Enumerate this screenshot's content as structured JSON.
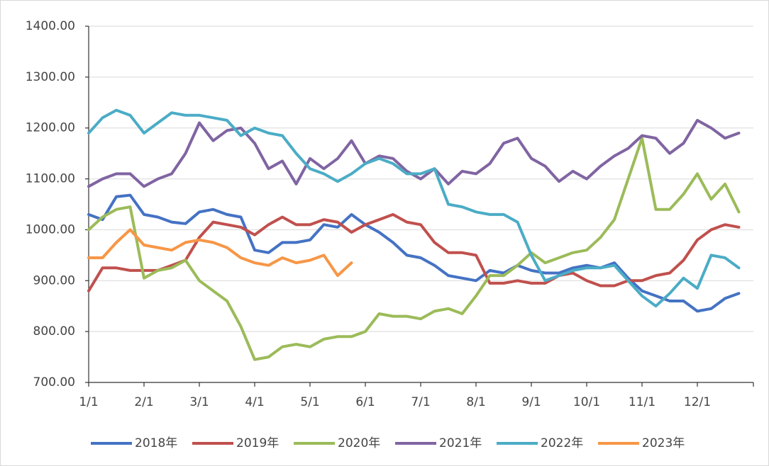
{
  "chart_data": {
    "type": "line",
    "categories": [
      "1/1",
      null,
      null,
      null,
      "2/1",
      null,
      null,
      null,
      "3/1",
      null,
      null,
      null,
      "4/1",
      null,
      null,
      null,
      "5/1",
      null,
      null,
      null,
      "6/1",
      null,
      null,
      null,
      "7/1",
      null,
      null,
      null,
      "8/1",
      null,
      null,
      null,
      "9/1",
      null,
      null,
      null,
      "10/1",
      null,
      null,
      null,
      "11/1",
      null,
      null,
      null,
      "12/1",
      null,
      null,
      null
    ],
    "ylim": [
      700,
      1400
    ],
    "yticks": [
      {
        "value": 700,
        "label": "700.00"
      },
      {
        "value": 800,
        "label": "800.00"
      },
      {
        "value": 900,
        "label": "900.00"
      },
      {
        "value": 1000,
        "label": "1000.00"
      },
      {
        "value": 1100,
        "label": "1100.00"
      },
      {
        "value": 1200,
        "label": "1200.00"
      },
      {
        "value": 1300,
        "label": "1300.00"
      },
      {
        "value": 1400,
        "label": "1400.00"
      }
    ],
    "grid": true,
    "legend": "bottom",
    "series": [
      {
        "name": "2018年",
        "color": "#4472c4",
        "values": [
          1030,
          1020,
          1065,
          1068,
          1030,
          1025,
          1015,
          1012,
          1035,
          1040,
          1030,
          1025,
          960,
          955,
          975,
          975,
          980,
          1010,
          1005,
          1030,
          1010,
          995,
          975,
          950,
          945,
          930,
          910,
          905,
          900,
          920,
          915,
          930,
          920,
          915,
          915,
          925,
          930,
          925,
          935,
          905,
          880,
          870,
          860,
          860,
          840,
          845,
          865,
          875
        ]
      },
      {
        "name": "2019年",
        "color": "#c0504d",
        "values": [
          880,
          925,
          925,
          920,
          920,
          920,
          930,
          940,
          985,
          1015,
          1010,
          1005,
          990,
          1010,
          1025,
          1010,
          1010,
          1020,
          1015,
          995,
          1010,
          1020,
          1030,
          1015,
          1010,
          975,
          955,
          955,
          950,
          895,
          895,
          900,
          895,
          895,
          910,
          915,
          900,
          890,
          890,
          900,
          900,
          910,
          915,
          940,
          980,
          1000,
          1010,
          1005
        ]
      },
      {
        "name": "2020年",
        "color": "#9bbb59",
        "values": [
          1000,
          1025,
          1040,
          1045,
          905,
          920,
          925,
          940,
          900,
          880,
          860,
          810,
          745,
          750,
          770,
          775,
          770,
          785,
          790,
          790,
          800,
          835,
          830,
          830,
          825,
          840,
          845,
          835,
          870,
          910,
          910,
          930,
          955,
          935,
          945,
          955,
          960,
          985,
          1020,
          1100,
          1180,
          1040,
          1040,
          1070,
          1110,
          1060,
          1090,
          1035
        ]
      },
      {
        "name": "2021年",
        "color": "#8064a2",
        "values": [
          1085,
          1100,
          1110,
          1110,
          1085,
          1100,
          1110,
          1150,
          1210,
          1175,
          1195,
          1200,
          1170,
          1120,
          1135,
          1090,
          1140,
          1120,
          1140,
          1175,
          1130,
          1145,
          1140,
          1115,
          1100,
          1120,
          1090,
          1115,
          1110,
          1130,
          1170,
          1180,
          1140,
          1125,
          1095,
          1115,
          1100,
          1125,
          1145,
          1160,
          1185,
          1180,
          1150,
          1170,
          1215,
          1200,
          1180,
          1190
        ]
      },
      {
        "name": "2022年",
        "color": "#4bacc6",
        "values": [
          1190,
          1220,
          1235,
          1225,
          1190,
          1210,
          1230,
          1225,
          1225,
          1220,
          1215,
          1185,
          1200,
          1190,
          1185,
          1150,
          1120,
          1110,
          1095,
          1110,
          1130,
          1140,
          1130,
          1110,
          1110,
          1120,
          1050,
          1045,
          1035,
          1030,
          1030,
          1015,
          950,
          900,
          910,
          920,
          925,
          925,
          930,
          900,
          870,
          850,
          875,
          905,
          885,
          950,
          945,
          925
        ]
      },
      {
        "name": "2023年",
        "color": "#f79646",
        "values": [
          945,
          945,
          975,
          1000,
          970,
          965,
          960,
          975,
          980,
          975,
          965,
          945,
          935,
          930,
          945,
          935,
          940,
          950,
          910,
          935,
          null,
          null,
          null,
          null,
          null,
          null,
          null,
          null,
          null,
          null,
          null,
          null,
          null,
          null,
          null,
          null,
          null,
          null,
          null,
          null,
          null,
          null,
          null,
          null,
          null,
          null,
          null,
          null
        ]
      }
    ]
  }
}
